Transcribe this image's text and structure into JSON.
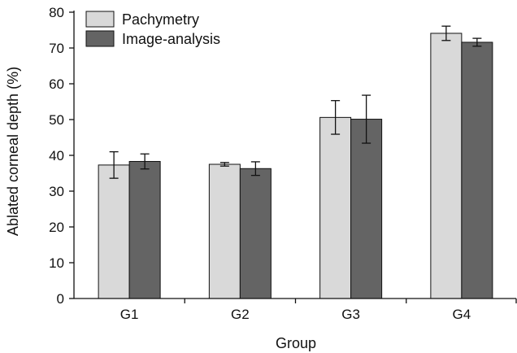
{
  "chart_data": {
    "type": "bar",
    "title": "",
    "xlabel": "Group",
    "ylabel": "Ablated corneal depth (%)",
    "categories": [
      "G1",
      "G2",
      "G3",
      "G4"
    ],
    "ylim": [
      0,
      80
    ],
    "yticks": [
      0,
      10,
      20,
      30,
      40,
      50,
      60,
      70,
      80
    ],
    "grid": false,
    "legend_position": "top-left",
    "series": [
      {
        "name": "Pachymetry",
        "color": "#d9d9d9",
        "values": [
          37.3,
          37.5,
          50.6,
          74.1
        ],
        "errors": [
          3.7,
          0.5,
          4.7,
          2.0
        ]
      },
      {
        "name": "Image-analysis",
        "color": "#646464",
        "values": [
          38.3,
          36.3,
          50.1,
          71.6
        ],
        "errors": [
          2.1,
          1.9,
          6.7,
          1.1
        ]
      }
    ]
  }
}
